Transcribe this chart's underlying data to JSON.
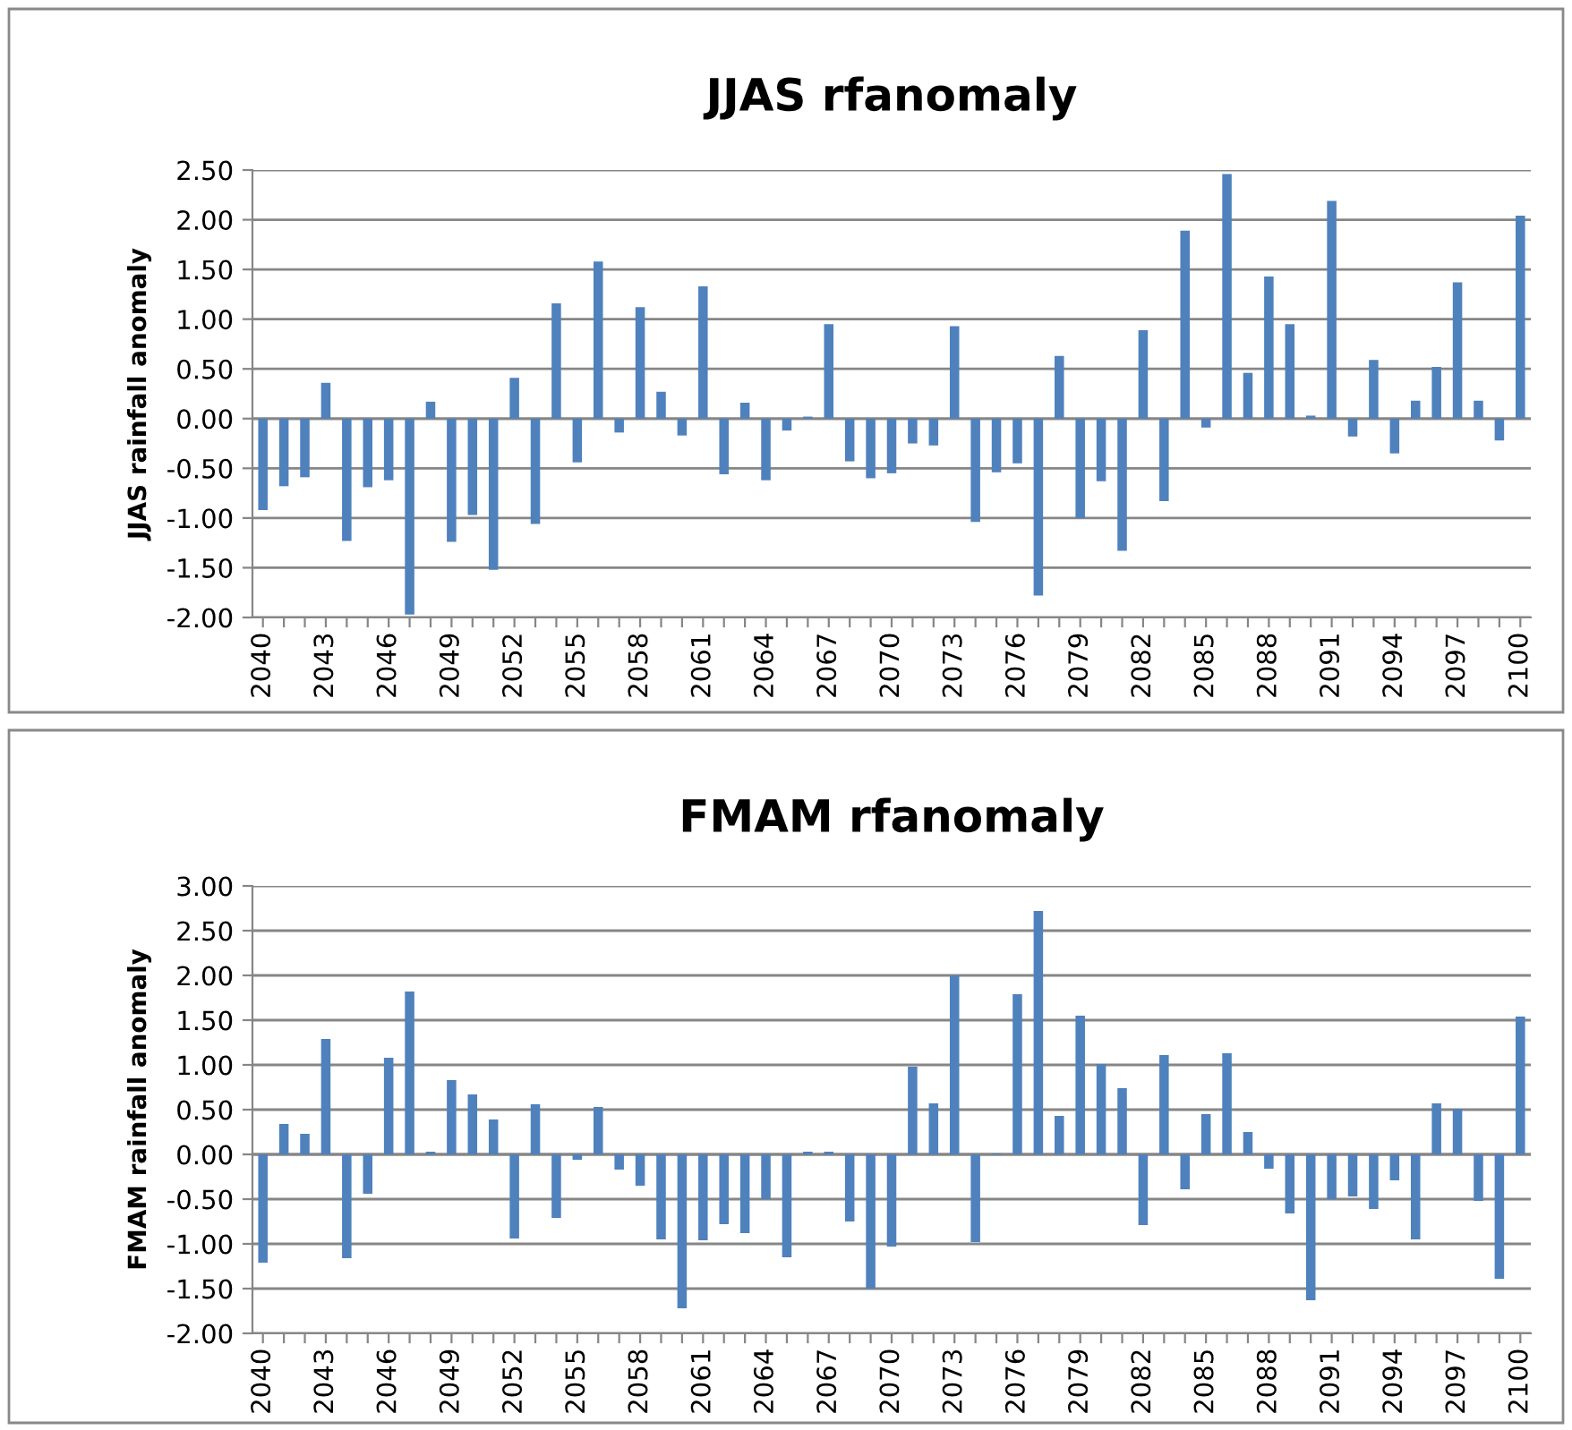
{
  "chart_data": [
    {
      "type": "bar",
      "title": "JJAS rfanomaly",
      "ylabel": "JJAS rainfall anomaly",
      "categories": [
        "2040",
        null,
        null,
        "2043",
        null,
        null,
        "2046",
        null,
        null,
        "2049",
        null,
        null,
        "2052",
        null,
        null,
        "2055",
        null,
        null,
        "2058",
        null,
        null,
        "2061",
        null,
        null,
        "2064",
        null,
        null,
        "2067",
        null,
        null,
        "2070",
        null,
        null,
        "2073",
        null,
        null,
        "2076",
        null,
        null,
        "2079",
        null,
        null,
        "2082",
        null,
        null,
        "2085",
        null,
        null,
        "2088",
        null,
        null,
        "2091",
        null,
        null,
        "2094",
        null,
        null,
        "2097",
        null,
        null,
        "2100"
      ],
      "values": [
        -0.92,
        -0.68,
        -0.59,
        0.36,
        -1.23,
        -0.69,
        -0.62,
        -1.97,
        0.17,
        -1.24,
        -0.97,
        -1.52,
        0.41,
        -1.06,
        1.16,
        -0.44,
        1.58,
        -0.14,
        1.12,
        0.27,
        -0.17,
        1.33,
        -0.56,
        0.16,
        -0.62,
        -0.12,
        0.02,
        0.95,
        -0.43,
        -0.6,
        -0.55,
        -0.25,
        -0.27,
        0.93,
        -1.04,
        -0.54,
        -0.45,
        -1.78,
        0.63,
        -1.0,
        -0.63,
        -1.33,
        0.89,
        -0.83,
        1.89,
        -0.09,
        2.46,
        0.46,
        1.43,
        0.95,
        0.03,
        2.19,
        -0.18,
        0.59,
        -0.35,
        0.18,
        0.52,
        1.37,
        0.18,
        -0.22,
        2.04
      ],
      "color": "#4f81bd",
      "ylim": [
        -2,
        2.5
      ],
      "yticks": [
        {
          "value": -2,
          "label": "-2.00"
        },
        {
          "value": -1.5,
          "label": "-1.50"
        },
        {
          "value": -1,
          "label": "-1.00"
        },
        {
          "value": -0.5,
          "label": "-0.50"
        },
        {
          "value": 0,
          "label": "0.00"
        },
        {
          "value": 0.5,
          "label": "0.50"
        },
        {
          "value": 1,
          "label": "1.00"
        },
        {
          "value": 1.5,
          "label": "1.50"
        },
        {
          "value": 2,
          "label": "2.00"
        },
        {
          "value": 2.5,
          "label": "2.50"
        }
      ],
      "grid": "y"
    },
    {
      "type": "bar",
      "title": "FMAM rfanomaly",
      "ylabel": "FMAM rainfall anomaly",
      "categories": [
        "2040",
        null,
        null,
        "2043",
        null,
        null,
        "2046",
        null,
        null,
        "2049",
        null,
        null,
        "2052",
        null,
        null,
        "2055",
        null,
        null,
        "2058",
        null,
        null,
        "2061",
        null,
        null,
        "2064",
        null,
        null,
        "2067",
        null,
        null,
        "2070",
        null,
        null,
        "2073",
        null,
        null,
        "2076",
        null,
        null,
        "2079",
        null,
        null,
        "2082",
        null,
        null,
        "2085",
        null,
        null,
        "2088",
        null,
        null,
        "2091",
        null,
        null,
        "2094",
        null,
        null,
        "2097",
        null,
        null,
        "2100"
      ],
      "values": [
        -1.21,
        0.34,
        0.23,
        1.29,
        -1.16,
        -0.44,
        1.08,
        1.82,
        0.03,
        0.83,
        0.67,
        0.39,
        -0.94,
        0.56,
        -0.71,
        -0.06,
        0.53,
        -0.17,
        -0.35,
        -0.95,
        -1.72,
        -0.96,
        -0.78,
        -0.88,
        -0.5,
        -1.15,
        0.03,
        0.03,
        -0.75,
        -1.5,
        -1.03,
        0.98,
        0.57,
        2.0,
        -0.98,
        0.01,
        1.79,
        2.72,
        0.43,
        1.55,
        1.01,
        0.74,
        -0.79,
        1.11,
        -0.39,
        0.45,
        1.13,
        0.25,
        -0.16,
        -0.66,
        -1.63,
        -0.5,
        -0.47,
        -0.61,
        -0.29,
        -0.95,
        0.57,
        0.51,
        -0.52,
        -1.39,
        1.54
      ],
      "color": "#4f81bd",
      "ylim": [
        -2,
        3
      ],
      "yticks": [
        {
          "value": -2,
          "label": "-2.00"
        },
        {
          "value": -1.5,
          "label": "-1.50"
        },
        {
          "value": -1,
          "label": "-1.00"
        },
        {
          "value": -0.5,
          "label": "-0.50"
        },
        {
          "value": 0,
          "label": "0.00"
        },
        {
          "value": 0.5,
          "label": "0.50"
        },
        {
          "value": 1,
          "label": "1.00"
        },
        {
          "value": 1.5,
          "label": "1.50"
        },
        {
          "value": 2,
          "label": "2.00"
        },
        {
          "value": 2.5,
          "label": "2.50"
        },
        {
          "value": 3,
          "label": "3.00"
        }
      ],
      "grid": "y"
    }
  ]
}
